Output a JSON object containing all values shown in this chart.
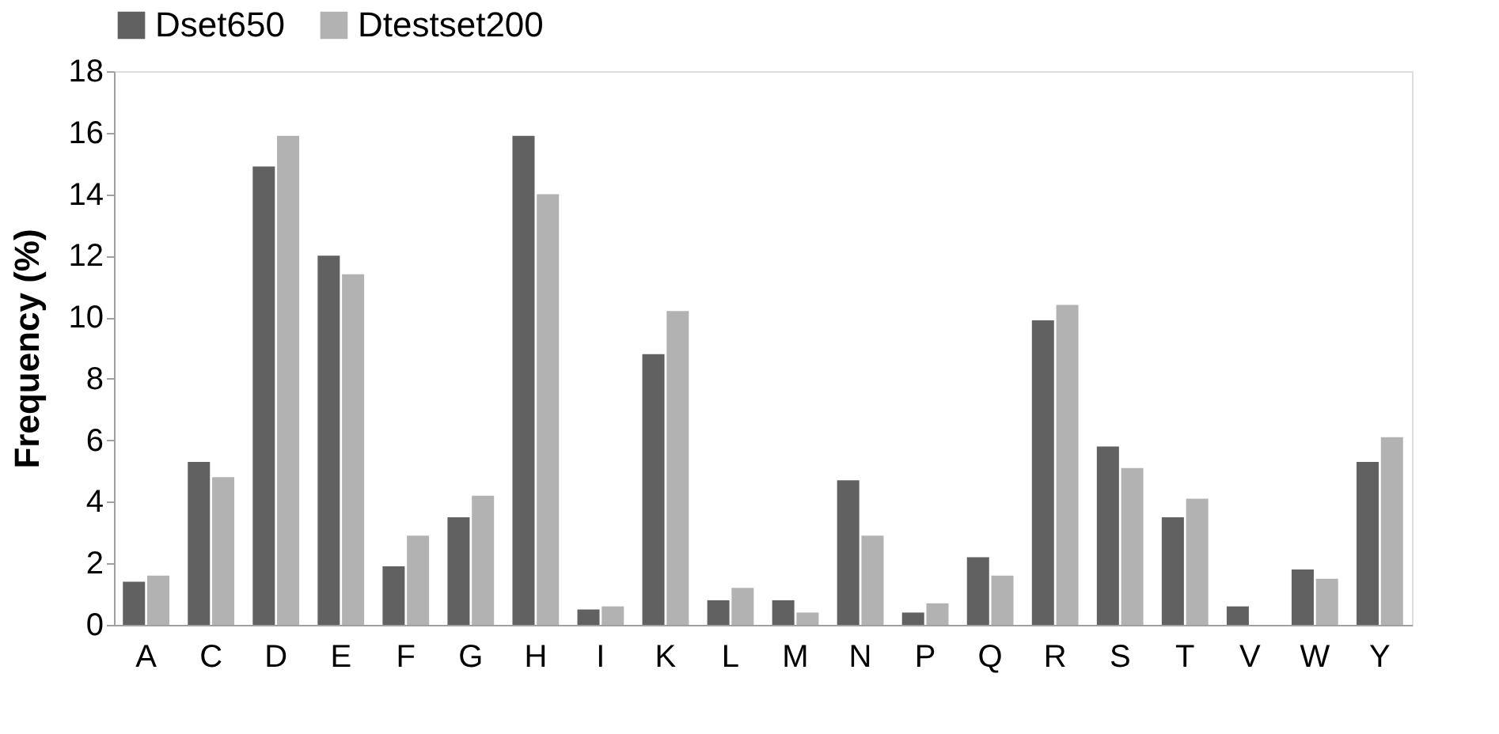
{
  "chart_data": {
    "type": "bar",
    "ylabel": "Frequency (%)",
    "categories": [
      "A",
      "C",
      "D",
      "E",
      "F",
      "G",
      "H",
      "I",
      "K",
      "L",
      "M",
      "N",
      "P",
      "Q",
      "R",
      "S",
      "T",
      "V",
      "W",
      "Y"
    ],
    "series": [
      {
        "name": "Dset650",
        "color": "#616161",
        "values": [
          1.4,
          5.3,
          14.9,
          12.0,
          1.9,
          3.5,
          15.9,
          0.5,
          8.8,
          0.8,
          0.8,
          4.7,
          0.4,
          2.2,
          9.9,
          5.8,
          3.5,
          0.6,
          1.8,
          5.3
        ]
      },
      {
        "name": "Dtestset200",
        "color": "#b2b2b2",
        "values": [
          1.6,
          4.8,
          15.9,
          11.4,
          2.9,
          4.2,
          14.0,
          0.6,
          10.2,
          1.2,
          0.4,
          2.9,
          0.7,
          1.6,
          10.4,
          5.1,
          4.1,
          0,
          1.5,
          6.1
        ]
      }
    ],
    "ylim": [
      0,
      18
    ],
    "yticks": [
      0,
      2,
      4,
      6,
      8,
      10,
      12,
      14,
      16,
      18
    ],
    "grid": false,
    "legend": "top"
  }
}
